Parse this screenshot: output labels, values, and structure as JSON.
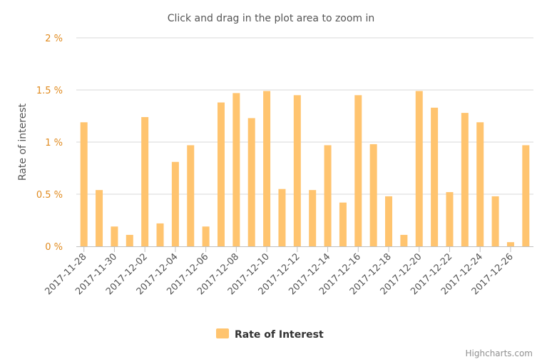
{
  "chart_data": {
    "type": "bar",
    "subtitle": "Click and drag in the plot area to zoom in",
    "ylabel": "Rate of interest",
    "ylim": [
      0,
      2
    ],
    "yticks": [
      "0 %",
      "0.5 %",
      "1 %",
      "1.5 %",
      "2 %"
    ],
    "ytick_values": [
      0,
      0.5,
      1,
      1.5,
      2
    ],
    "categories": [
      "2017-11-28",
      "2017-11-29",
      "2017-11-30",
      "2017-12-01",
      "2017-12-02",
      "2017-12-03",
      "2017-12-04",
      "2017-12-05",
      "2017-12-06",
      "2017-12-07",
      "2017-12-08",
      "2017-12-09",
      "2017-12-10",
      "2017-12-11",
      "2017-12-12",
      "2017-12-13",
      "2017-12-14",
      "2017-12-15",
      "2017-12-16",
      "2017-12-17",
      "2017-12-18",
      "2017-12-19",
      "2017-12-20",
      "2017-12-21",
      "2017-12-22",
      "2017-12-23",
      "2017-12-24",
      "2017-12-25",
      "2017-12-26",
      "2017-12-27"
    ],
    "xtick_labels": [
      "2017-11-28",
      "2017-11-30",
      "2017-12-02",
      "2017-12-04",
      "2017-12-06",
      "2017-12-08",
      "2017-12-10",
      "2017-12-12",
      "2017-12-14",
      "2017-12-16",
      "2017-12-18",
      "2017-12-20",
      "2017-12-22",
      "2017-12-24",
      "2017-12-26"
    ],
    "series": [
      {
        "name": "Rate of Interest",
        "color": "#ffc46f",
        "values": [
          1.19,
          0.54,
          0.19,
          0.11,
          1.24,
          0.22,
          0.81,
          0.97,
          0.19,
          1.38,
          1.47,
          1.23,
          1.49,
          0.55,
          1.45,
          0.54,
          0.97,
          0.42,
          1.45,
          0.98,
          0.48,
          0.11,
          1.49,
          1.33,
          0.52,
          1.28,
          1.19,
          0.48,
          0.04,
          0.97
        ]
      }
    ],
    "grid": true,
    "legend_position": "bottom-center"
  },
  "credits": "Highcharts.com",
  "colors": {
    "tick_label": "#e08a1e",
    "bar": "#ffc46f"
  }
}
